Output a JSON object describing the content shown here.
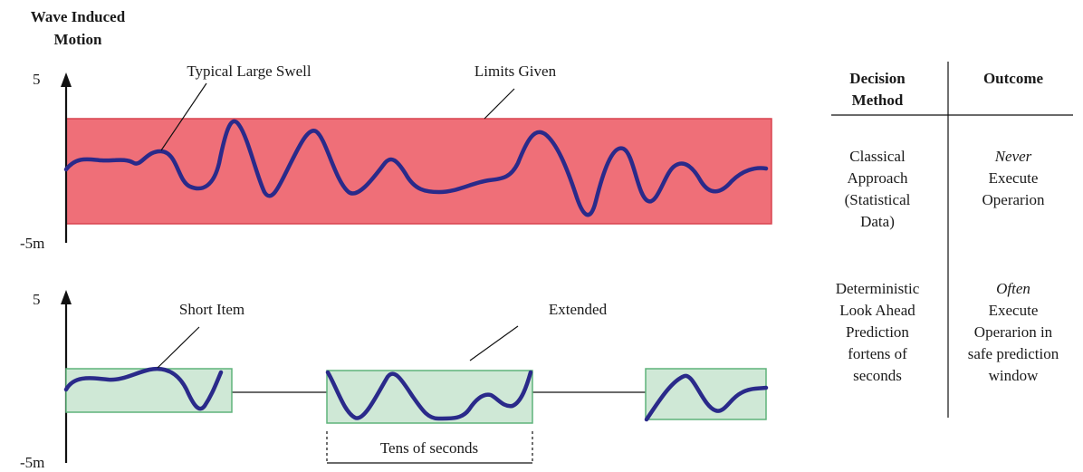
{
  "title": [
    "Wave Induced",
    "Motion"
  ],
  "top_chart": {
    "y_top": "5",
    "y_bottom": "-5m",
    "label_swell": "Typical Large Swell",
    "label_limits": "Limits Given"
  },
  "bottom_chart": {
    "y_top": "5",
    "y_bottom": "-5m",
    "label_short": "Short Item",
    "label_extended": "Extended",
    "label_window": "Tens of seconds"
  },
  "table": {
    "header_method": [
      "Decision",
      "Method"
    ],
    "header_outcome": "Outcome",
    "row1_method": [
      "Classical",
      "Approach",
      "(Statistical",
      "Data)"
    ],
    "row1_outcome": [
      "Never",
      "Execute",
      "Operarion"
    ],
    "row2_method": [
      "Deterministic",
      "Look Ahead",
      "Prediction",
      "fortens of",
      "seconds"
    ],
    "row2_outcome": [
      "Often",
      "Execute",
      "Operarion in",
      "safe prediction",
      "window"
    ]
  },
  "colors": {
    "limits_band": "#ef6f78",
    "limits_border": "#d9444f",
    "safe_window": "#cfe8d6",
    "safe_border": "#5fb37a",
    "wave": "#2a2a8a"
  }
}
